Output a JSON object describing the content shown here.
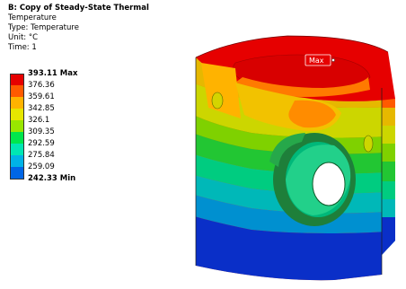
{
  "header": {
    "title": "B: Copy of Steady-State Thermal",
    "type_line": "Temperature",
    "subtype_line": "Type: Temperature",
    "unit_line": "Unit: °C",
    "time_line": "Time: 1"
  },
  "legend": {
    "labels": [
      "393.11 Max",
      "376.36",
      "359.61",
      "342.85",
      "326.1",
      "309.35",
      "292.59",
      "275.84",
      "259.09",
      "242.33 Min"
    ],
    "colors": [
      "#e60000",
      "#ff5a00",
      "#ffb300",
      "#e6e600",
      "#99e600",
      "#00e64d",
      "#00e6b3",
      "#00b3e6",
      "#0066e6"
    ]
  },
  "probe": {
    "label": "Max"
  },
  "model": {
    "icon": "thermal-piston-contour-model"
  }
}
